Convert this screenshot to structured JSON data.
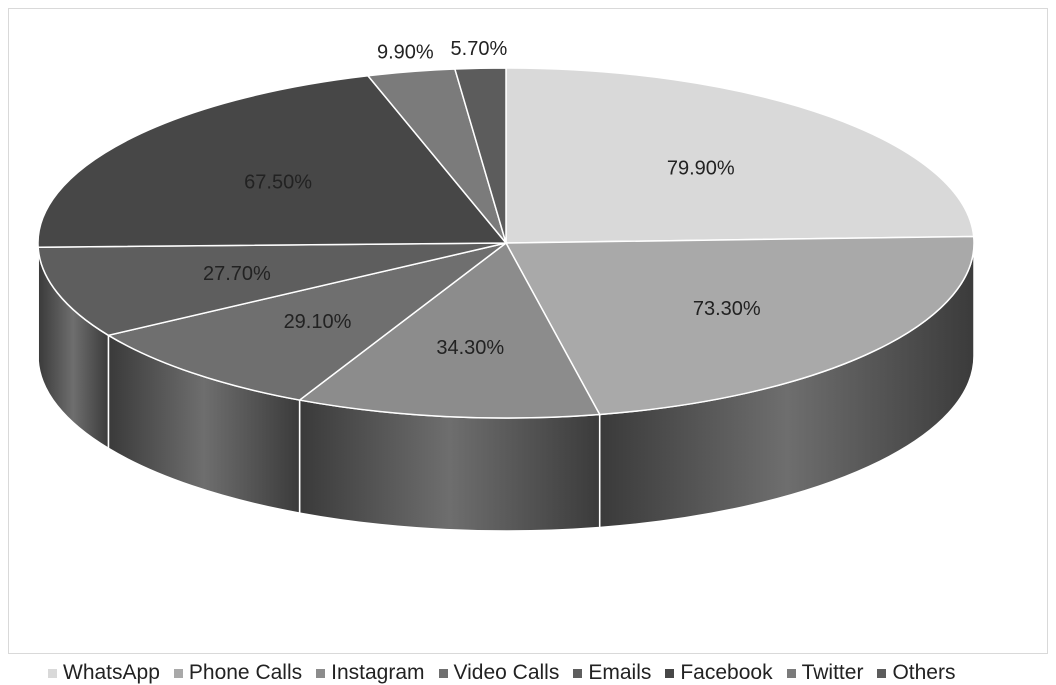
{
  "chart_data": {
    "type": "pie",
    "variant": "3d",
    "categories": [
      "WhatsApp",
      "Phone Calls",
      "Instagram",
      "Video Calls",
      "Emails",
      "Facebook",
      "Twitter",
      "Others"
    ],
    "values": [
      79.9,
      73.3,
      34.3,
      29.1,
      27.7,
      67.5,
      9.9,
      5.7
    ],
    "labels": [
      "79.90%",
      "73.30%",
      "34.30%",
      "29.10%",
      "27.70%",
      "67.50%",
      "9.90%",
      "5.70%"
    ],
    "colors": [
      "#d9d9d9",
      "#a9a9a9",
      "#8c8c8c",
      "#6f6f6f",
      "#5e5e5e",
      "#474747",
      "#7b7b7b",
      "#5c5c5c"
    ],
    "legend_position": "bottom"
  }
}
